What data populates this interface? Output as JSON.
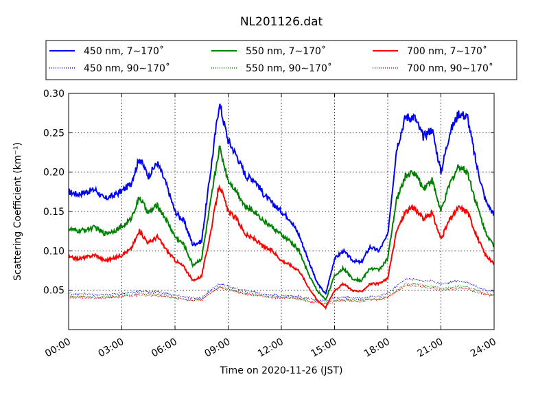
{
  "chart_data": {
    "type": "line",
    "title": "NL201126.dat",
    "xlabel": "Time on 2020-11-26 (JST)",
    "ylabel": "Scattering Coefficient (km⁻¹)",
    "x_ticks": [
      "00:00",
      "03:00",
      "06:00",
      "09:00",
      "12:00",
      "15:00",
      "18:00",
      "21:00",
      "24:00"
    ],
    "y_ticks": [
      "0.05",
      "0.10",
      "0.15",
      "0.20",
      "0.25",
      "0.30"
    ],
    "x_unit": "hours",
    "xlim": [
      0,
      24
    ],
    "ylim": [
      0.0,
      0.3
    ],
    "grid": true,
    "legend_position": "top, outside plot",
    "x": [
      0,
      0.5,
      1,
      1.5,
      2,
      2.5,
      3,
      3.5,
      4,
      4.5,
      5,
      5.5,
      6,
      6.5,
      7,
      7.5,
      8,
      8.5,
      9,
      9.5,
      10,
      10.5,
      11,
      11.5,
      12,
      12.5,
      13,
      13.5,
      14,
      14.5,
      15,
      15.5,
      16,
      16.5,
      17,
      17.5,
      18,
      18.5,
      19,
      19.5,
      20,
      20.5,
      21,
      21.5,
      22,
      22.5,
      23,
      23.5,
      24
    ],
    "series": [
      {
        "name": "450 nm, 7∼170˚",
        "color": "#0000ff",
        "style": "solid",
        "values": [
          0.175,
          0.172,
          0.175,
          0.178,
          0.166,
          0.17,
          0.176,
          0.185,
          0.218,
          0.195,
          0.212,
          0.185,
          0.15,
          0.138,
          0.108,
          0.112,
          0.2,
          0.288,
          0.24,
          0.22,
          0.195,
          0.19,
          0.172,
          0.16,
          0.15,
          0.14,
          0.12,
          0.09,
          0.06,
          0.045,
          0.09,
          0.1,
          0.088,
          0.085,
          0.105,
          0.1,
          0.12,
          0.23,
          0.27,
          0.27,
          0.245,
          0.255,
          0.2,
          0.25,
          0.275,
          0.27,
          0.21,
          0.165,
          0.145
        ]
      },
      {
        "name": "550 nm, 7∼170˚",
        "color": "#008000",
        "style": "solid",
        "values": [
          0.128,
          0.125,
          0.127,
          0.13,
          0.122,
          0.125,
          0.13,
          0.14,
          0.168,
          0.148,
          0.158,
          0.14,
          0.118,
          0.108,
          0.082,
          0.09,
          0.16,
          0.232,
          0.19,
          0.175,
          0.155,
          0.15,
          0.138,
          0.13,
          0.12,
          0.112,
          0.1,
          0.072,
          0.05,
          0.038,
          0.068,
          0.078,
          0.065,
          0.062,
          0.078,
          0.076,
          0.09,
          0.165,
          0.195,
          0.2,
          0.18,
          0.19,
          0.15,
          0.185,
          0.208,
          0.2,
          0.16,
          0.125,
          0.105
        ]
      },
      {
        "name": "700 nm, 7∼170˚",
        "color": "#ff0000",
        "style": "solid",
        "values": [
          0.092,
          0.09,
          0.092,
          0.095,
          0.088,
          0.09,
          0.095,
          0.102,
          0.125,
          0.11,
          0.118,
          0.102,
          0.088,
          0.08,
          0.062,
          0.068,
          0.122,
          0.185,
          0.15,
          0.14,
          0.12,
          0.115,
          0.105,
          0.1,
          0.088,
          0.082,
          0.075,
          0.055,
          0.038,
          0.028,
          0.05,
          0.058,
          0.05,
          0.048,
          0.058,
          0.058,
          0.065,
          0.125,
          0.15,
          0.155,
          0.14,
          0.148,
          0.115,
          0.14,
          0.155,
          0.15,
          0.12,
          0.095,
          0.083
        ]
      },
      {
        "name": "450 nm, 90∼170˚",
        "color": "#0000ff",
        "style": "dotted",
        "values": [
          0.046,
          0.045,
          0.045,
          0.044,
          0.044,
          0.045,
          0.046,
          0.047,
          0.049,
          0.048,
          0.048,
          0.046,
          0.043,
          0.042,
          0.04,
          0.04,
          0.05,
          0.058,
          0.055,
          0.052,
          0.049,
          0.048,
          0.045,
          0.044,
          0.043,
          0.043,
          0.042,
          0.04,
          0.037,
          0.036,
          0.04,
          0.041,
          0.04,
          0.04,
          0.042,
          0.042,
          0.046,
          0.055,
          0.064,
          0.064,
          0.062,
          0.062,
          0.058,
          0.06,
          0.062,
          0.06,
          0.055,
          0.05,
          0.048
        ]
      },
      {
        "name": "550 nm, 90∼170˚",
        "color": "#008000",
        "style": "dotted",
        "values": [
          0.042,
          0.042,
          0.042,
          0.041,
          0.041,
          0.042,
          0.043,
          0.044,
          0.046,
          0.045,
          0.045,
          0.043,
          0.04,
          0.039,
          0.037,
          0.038,
          0.047,
          0.055,
          0.052,
          0.049,
          0.046,
          0.045,
          0.043,
          0.042,
          0.041,
          0.041,
          0.04,
          0.037,
          0.035,
          0.033,
          0.037,
          0.038,
          0.037,
          0.037,
          0.039,
          0.039,
          0.042,
          0.05,
          0.058,
          0.058,
          0.056,
          0.055,
          0.052,
          0.053,
          0.055,
          0.054,
          0.05,
          0.046,
          0.044
        ]
      },
      {
        "name": "700 nm, 90∼170˚",
        "color": "#ff0000",
        "style": "dotted",
        "values": [
          0.041,
          0.041,
          0.041,
          0.04,
          0.04,
          0.041,
          0.042,
          0.043,
          0.044,
          0.043,
          0.043,
          0.042,
          0.04,
          0.039,
          0.037,
          0.038,
          0.046,
          0.054,
          0.051,
          0.048,
          0.045,
          0.044,
          0.042,
          0.041,
          0.04,
          0.04,
          0.039,
          0.036,
          0.034,
          0.032,
          0.036,
          0.037,
          0.036,
          0.036,
          0.038,
          0.038,
          0.041,
          0.048,
          0.056,
          0.056,
          0.054,
          0.053,
          0.05,
          0.051,
          0.053,
          0.052,
          0.048,
          0.045,
          0.043
        ]
      }
    ]
  }
}
